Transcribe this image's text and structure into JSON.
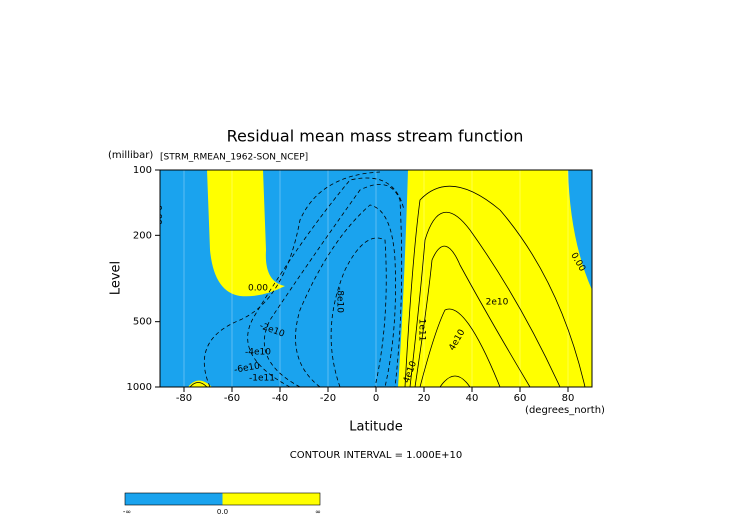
{
  "chart_data": {
    "type": "contour",
    "title": "Residual mean mass stream function",
    "subtitle": "[STRM_RMEAN_1962-SON_NCEP]",
    "x_label": "Latitude",
    "x_unit": "(degrees_north)",
    "y_label": "Level",
    "y_unit": "(millibar)",
    "xlim": [
      -90,
      90
    ],
    "xticks": [
      -80,
      -60,
      -40,
      -20,
      0,
      20,
      40,
      60,
      80
    ],
    "ylim": [
      1000,
      100
    ],
    "yticks": [
      100,
      200,
      500,
      1000
    ],
    "log_y": true,
    "grid": true,
    "contour_labels": [
      "0.00",
      "0.00",
      "-2e10",
      "-4e10",
      "-6e10",
      "-1e11",
      "-8e10",
      "2e10",
      "4e10",
      "4e10",
      "1e11",
      "0.00"
    ],
    "contour_interval_label": "CONTOUR INTERVAL = 1.000E+10",
    "colorbar": {
      "labels": [
        "-∞",
        "0.0",
        "∞"
      ],
      "colors": [
        "#1aa3ee",
        "#ffff00"
      ]
    }
  }
}
